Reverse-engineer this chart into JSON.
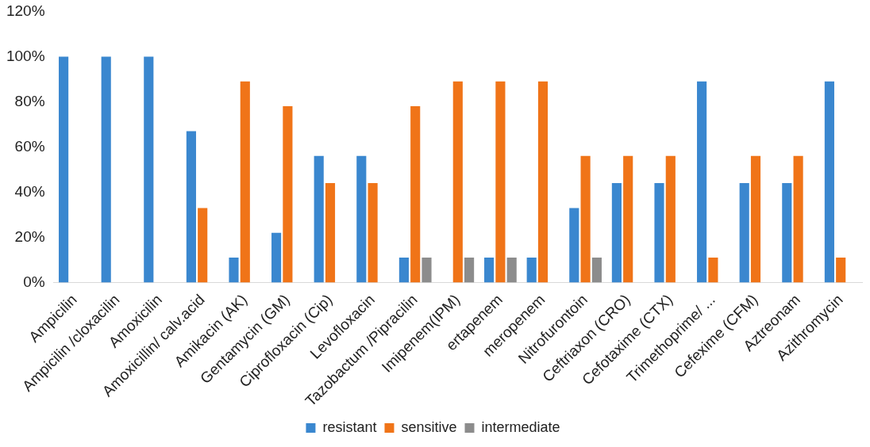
{
  "chart_data": {
    "type": "bar",
    "categories": [
      "Ampicilin",
      "Ampicilin /cloxacilin",
      "Amoxicilin",
      "Amoxicillin/ calv.acid",
      "Amikacin (AK)",
      "Gentamycin (GM)",
      "Ciprofloxacin (Cip)",
      "Levofloxacin",
      "Tazobactum /Pipracilin",
      "Imipenem(IPM)",
      "ertapenem",
      "meropenem",
      "Nitrofurontoin",
      "Ceftriaxon (CRO)",
      "Cefotaxime (CTX)",
      "Trimethoprime/ ...",
      "Cefexime (CFM)",
      "Aztreonam",
      "Azithromycin"
    ],
    "series": [
      {
        "name": "resistant",
        "color": "#3a87cf",
        "values": [
          100,
          100,
          100,
          67,
          11,
          22,
          56,
          56,
          11,
          null,
          11,
          11,
          33,
          44,
          44,
          89,
          44,
          44,
          89
        ]
      },
      {
        "name": "sensitive",
        "color": "#f07418",
        "values": [
          null,
          null,
          null,
          33,
          89,
          78,
          44,
          44,
          78,
          89,
          89,
          89,
          56,
          56,
          56,
          11,
          56,
          56,
          11
        ]
      },
      {
        "name": "intermediate",
        "color": "#8c8c8c",
        "values": [
          null,
          null,
          null,
          null,
          null,
          null,
          null,
          null,
          11,
          11,
          11,
          null,
          11,
          null,
          null,
          null,
          null,
          null,
          null
        ]
      }
    ],
    "ylim": [
      0,
      120
    ],
    "yticks": [
      {
        "value": 0,
        "label": "0%"
      },
      {
        "value": 20,
        "label": "20%"
      },
      {
        "value": 40,
        "label": "40%"
      },
      {
        "value": 60,
        "label": "60%"
      },
      {
        "value": 80,
        "label": "80%"
      },
      {
        "value": 100,
        "label": "100%"
      },
      {
        "value": 120,
        "label": "120%"
      }
    ],
    "grid": false,
    "legend": "bottom"
  }
}
